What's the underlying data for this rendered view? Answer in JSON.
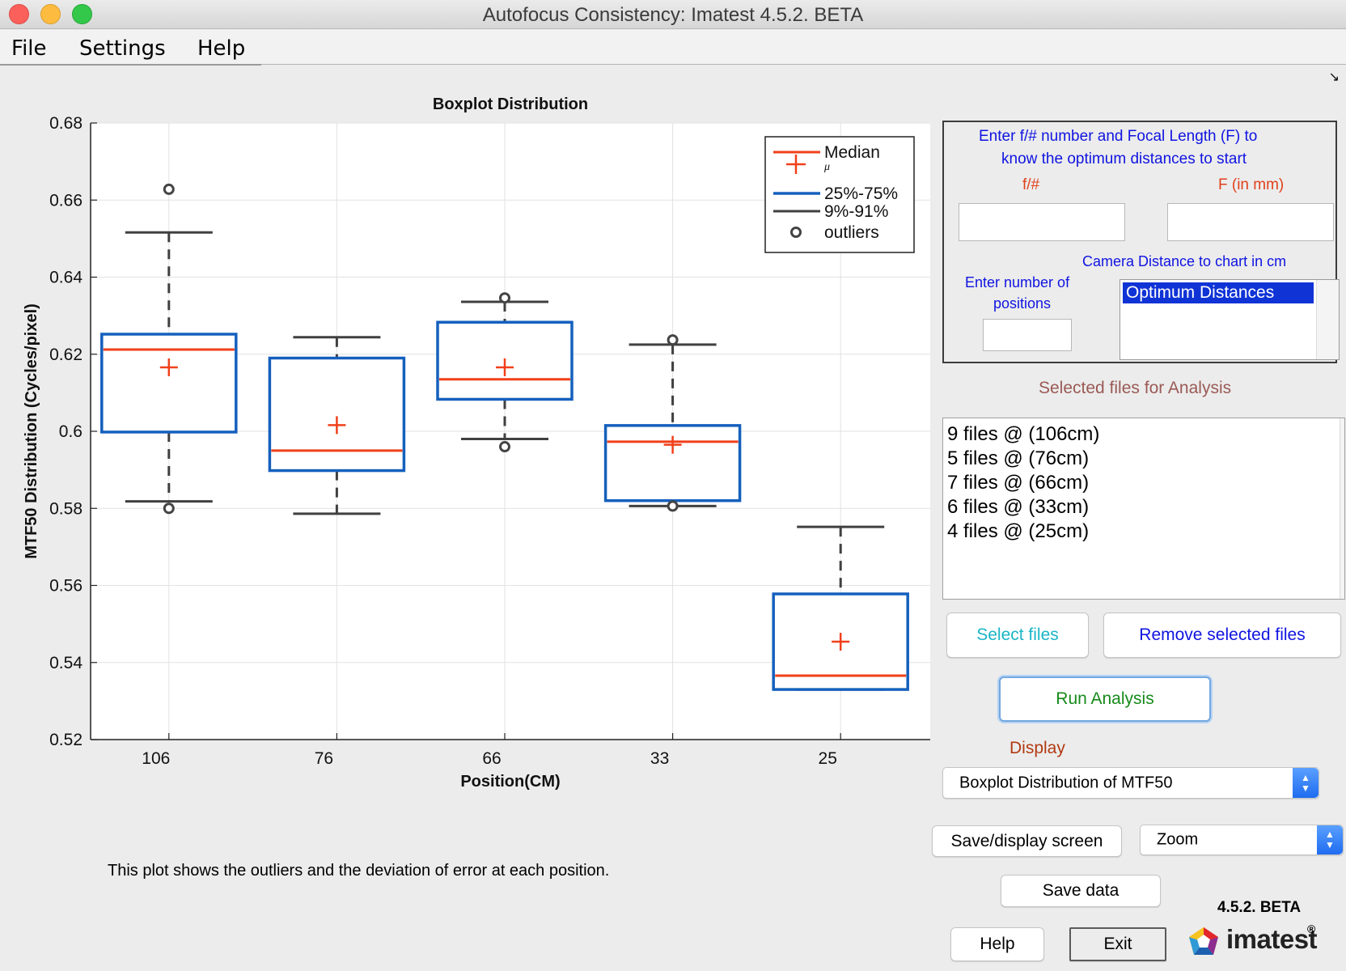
{
  "window": {
    "title": "Autofocus Consistency: Imatest 4.5.2. BETA"
  },
  "menu": {
    "items": [
      "File",
      "Settings",
      "Help"
    ]
  },
  "chart_data": {
    "type": "boxplot",
    "title": "Boxplot Distribution",
    "xlabel": "Position(CM)",
    "ylabel": "MTF50 Distribution (Cycles/pixel)",
    "ylim": [
      0.52,
      0.68
    ],
    "yticks": [
      "0.52",
      "0.54",
      "0.56",
      "0.58",
      "0.6",
      "0.62",
      "0.64",
      "0.66",
      "0.68"
    ],
    "grid": true,
    "legend_position": "top-right",
    "legend": [
      "Median",
      "μ",
      "25%-75%",
      "9%-91%",
      "outliers"
    ],
    "categories": [
      "106",
      "76",
      "66",
      "33",
      "25"
    ],
    "colors": {
      "median": "#f0401a",
      "box": "#1560bd",
      "whisker": "#404040",
      "grid": "#e2e2e2"
    },
    "boxes": [
      {
        "position": "106",
        "q1": 0.5998,
        "median": 0.6212,
        "q3": 0.6252,
        "mean": 0.6166,
        "whisker_low": 0.5818,
        "whisker_high": 0.6516,
        "outliers": [
          0.6628,
          0.58
        ]
      },
      {
        "position": "76",
        "q1": 0.5898,
        "median": 0.595,
        "q3": 0.619,
        "mean": 0.6016,
        "whisker_low": 0.5786,
        "whisker_high": 0.6244,
        "outliers": []
      },
      {
        "position": "66",
        "q1": 0.6083,
        "median": 0.6135,
        "q3": 0.6283,
        "mean": 0.6166,
        "whisker_low": 0.598,
        "whisker_high": 0.6336,
        "outliers": [
          0.6346,
          0.596
        ]
      },
      {
        "position": "33",
        "q1": 0.582,
        "median": 0.5973,
        "q3": 0.6015,
        "mean": 0.5965,
        "whisker_low": 0.5806,
        "whisker_high": 0.6225,
        "outliers": [
          0.6237,
          0.5806
        ]
      },
      {
        "position": "25",
        "q1": 0.533,
        "median": 0.5366,
        "q3": 0.5578,
        "mean": 0.5454,
        "whisker_low": 0.533,
        "whisker_high": 0.5752,
        "outliers": []
      }
    ]
  },
  "caption": "This plot shows the outliers and the deviation of error at each position.",
  "optimum": {
    "instructions_line1": "Enter f/# number and Focal Length (F)  to",
    "instructions_line2": "know the optimum distances to start",
    "fnum_label": "f/#",
    "focal_label": "F (in mm)",
    "fnum_value": "",
    "focal_value": "",
    "camera_distance_label": "Camera Distance to chart in cm",
    "positions_label_line1": "Enter number of",
    "positions_label_line2": "positions",
    "positions_value": "",
    "list_selected": "Optimum Distances"
  },
  "files": {
    "header": "Selected files for Analysis",
    "items": [
      "9 files @ (106cm)",
      "5 files @ (76cm)",
      "7 files @ (66cm)",
      "6 files @ (33cm)",
      "4 files @ (25cm)"
    ]
  },
  "buttons": {
    "select_files": "Select files",
    "remove_files": "Remove selected files",
    "run_analysis": "Run Analysis",
    "save_display": "Save/display screen",
    "save_data": "Save data",
    "help": "Help",
    "exit": "Exit"
  },
  "display": {
    "label": "Display",
    "selected": "Boxplot Distribution of MTF50"
  },
  "zoom": {
    "selected": "Zoom"
  },
  "version": "4.5.2. BETA",
  "logo": {
    "text": "imatest",
    "mark": "®"
  },
  "ui_colors": {
    "blue_text": "#1014e0",
    "cyan_text": "#19b5c6",
    "green_text": "#168a1a",
    "orange_text": "#e0411c",
    "display_label": "#b23a12",
    "header_text": "#9a5a55"
  }
}
